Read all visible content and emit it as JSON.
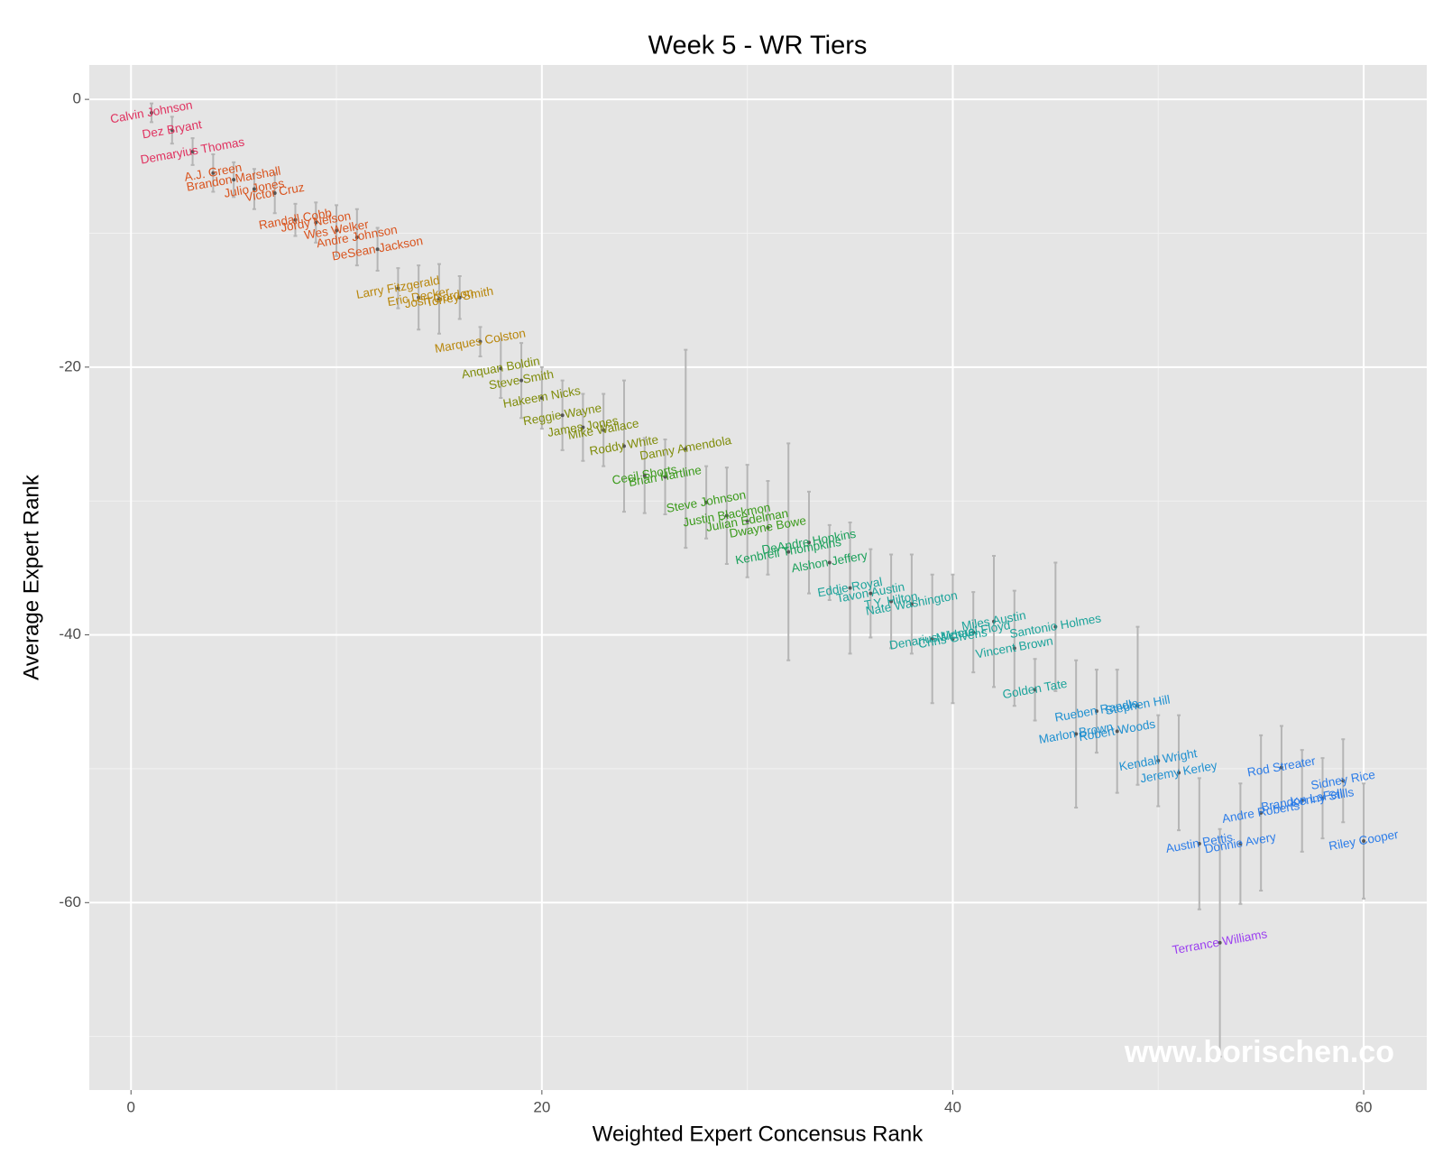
{
  "chart_data": {
    "type": "scatter",
    "title": "Week 5 - WR Tiers",
    "x_label": "Weighted Expert Concensus Rank",
    "y_label": "Average Expert Rank",
    "watermark": "www.borischen.co",
    "xlim": [
      -2.03,
      63.07
    ],
    "ylim": [
      -74.0,
      2.57
    ],
    "xticks": [
      0,
      20,
      40,
      60
    ],
    "yticks": [
      0,
      -20,
      -40,
      -60
    ],
    "grid": true,
    "series": [
      {
        "color": "#e0315f",
        "labels": [
          "Calvin Johnson",
          "Dez Bryant",
          "Demaryius Thomas"
        ],
        "x": [
          1,
          2,
          3
        ],
        "values": [
          -1.0,
          -2.3,
          -3.9
        ],
        "errors": [
          0.7,
          1.0,
          1.0
        ]
      },
      {
        "color": "#d9541e",
        "labels": [
          "A.J. Green",
          "Brandon Marshall",
          "Julio Jones",
          "Victor Cruz",
          "Randall Cobb",
          "Jordy Nelson",
          "Wes Welker",
          "Andre Johnson",
          "DeSean Jackson"
        ],
        "x": [
          4,
          5,
          6,
          7,
          8,
          9,
          10,
          11,
          12
        ],
        "values": [
          -5.5,
          -6.0,
          -6.7,
          -7.0,
          -9.0,
          -9.2,
          -9.8,
          -10.3,
          -11.2
        ],
        "errors": [
          1.4,
          1.3,
          1.5,
          1.5,
          1.2,
          1.5,
          1.9,
          2.1,
          1.6
        ]
      },
      {
        "color": "#b8860b",
        "labels": [
          "Larry Fitzgerald",
          "Eric Decker",
          "Josh Gordon",
          "Torrey Smith",
          "Marques Colston"
        ],
        "x": [
          13,
          14,
          15,
          16,
          17
        ],
        "values": [
          -14.1,
          -14.8,
          -14.9,
          -14.8,
          -18.1
        ],
        "errors": [
          1.5,
          2.4,
          2.6,
          1.6,
          1.1
        ]
      },
      {
        "color": "#7f8c0a",
        "labels": [
          "Anquan Boldin",
          "Steve Smith",
          "Hakeem Nicks",
          "Reggie Wayne",
          "James Jones",
          "Mike Wallace",
          "Roddy White",
          "Danny Amendola"
        ],
        "x": [
          18,
          19,
          20,
          21,
          22,
          23,
          24,
          27
        ],
        "values": [
          -20.1,
          -21.0,
          -22.3,
          -23.6,
          -24.5,
          -24.7,
          -25.9,
          -26.1
        ],
        "errors": [
          2.2,
          2.8,
          2.3,
          2.6,
          2.5,
          2.7,
          4.9,
          7.4
        ]
      },
      {
        "color": "#3a9a1a",
        "labels": [
          "Cecil Shorts",
          "Brian Hartline",
          "Steve Johnson",
          "Justin Blackmon",
          "Julian Edelman",
          "Dwayne Bowe"
        ],
        "x": [
          25,
          26,
          28,
          29,
          30,
          31
        ],
        "values": [
          -28.1,
          -28.2,
          -30.1,
          -31.1,
          -31.5,
          -32.0
        ],
        "errors": [
          2.8,
          2.8,
          2.7,
          3.6,
          4.2,
          3.5
        ]
      },
      {
        "color": "#1aa05a",
        "labels": [
          "Kenbrell Thompkins",
          "DeAndre Hopkins",
          "Alshon Jeffery"
        ],
        "x": [
          32,
          33,
          34
        ],
        "values": [
          -33.8,
          -33.1,
          -34.6
        ],
        "errors": [
          8.1,
          3.8,
          2.8
        ]
      },
      {
        "color": "#1ba39a",
        "labels": [
          "Eddie Royal",
          "Tavon Austin",
          "T.Y. Hilton",
          "Nate Washington",
          "Denarius Moore",
          "Chris Givens",
          "Michael Floyd",
          "Miles Austin",
          "Vincent Brown",
          "Golden Tate",
          "Santonio Holmes"
        ],
        "x": [
          35,
          36,
          37,
          38,
          39,
          40,
          41,
          42,
          43,
          44,
          45
        ],
        "values": [
          -36.5,
          -36.9,
          -37.5,
          -37.7,
          -40.3,
          -40.3,
          -39.8,
          -39.0,
          -41.0,
          -44.1,
          -39.4
        ],
        "errors": [
          4.9,
          3.3,
          3.5,
          3.7,
          4.8,
          4.8,
          3.0,
          4.9,
          4.3,
          2.3,
          4.8
        ]
      },
      {
        "color": "#1f90d0",
        "labels": [
          "Marlon Brown",
          "Rueben Randle",
          "Robert Woods",
          "Stephen Hill",
          "Kendall Wright",
          "Jeremy Kerley"
        ],
        "x": [
          46,
          47,
          48,
          49,
          50,
          51
        ],
        "values": [
          -47.4,
          -45.7,
          -47.2,
          -45.3,
          -49.4,
          -50.3
        ],
        "errors": [
          5.5,
          3.1,
          4.6,
          5.9,
          3.4,
          4.3
        ]
      },
      {
        "color": "#2b7ce8",
        "labels": [
          "Austin Pettis",
          "Donnie Avery",
          "Andre Roberts",
          "Rod Streater",
          "Brandon LaFell",
          "Kenny Stills",
          "Sidney Rice",
          "Riley Cooper"
        ],
        "x": [
          52,
          54,
          55,
          56,
          57,
          58,
          59,
          60
        ],
        "values": [
          -55.6,
          -55.6,
          -53.3,
          -49.9,
          -52.4,
          -52.2,
          -50.9,
          -55.4
        ],
        "errors": [
          4.9,
          4.5,
          5.8,
          3.1,
          3.8,
          3.0,
          3.1,
          4.3
        ]
      },
      {
        "color": "#9b3ff0",
        "labels": [
          "Terrance Williams"
        ],
        "x": [
          53
        ],
        "values": [
          -63.0
        ],
        "errors": [
          8.5
        ]
      }
    ]
  }
}
